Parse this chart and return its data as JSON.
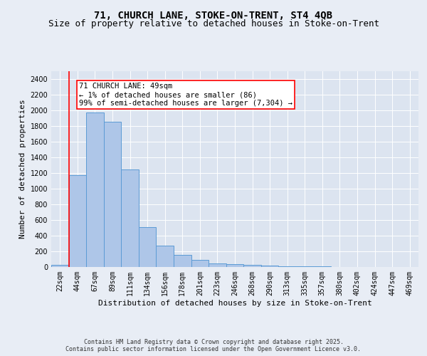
{
  "title_line1": "71, CHURCH LANE, STOKE-ON-TRENT, ST4 4QB",
  "title_line2": "Size of property relative to detached houses in Stoke-on-Trent",
  "xlabel": "Distribution of detached houses by size in Stoke-on-Trent",
  "ylabel": "Number of detached properties",
  "categories": [
    "22sqm",
    "44sqm",
    "67sqm",
    "89sqm",
    "111sqm",
    "134sqm",
    "156sqm",
    "178sqm",
    "201sqm",
    "223sqm",
    "246sqm",
    "268sqm",
    "290sqm",
    "313sqm",
    "335sqm",
    "357sqm",
    "380sqm",
    "402sqm",
    "424sqm",
    "447sqm",
    "469sqm"
  ],
  "values": [
    25,
    1175,
    1975,
    1855,
    1245,
    510,
    270,
    155,
    90,
    50,
    35,
    30,
    20,
    10,
    5,
    5,
    3,
    2,
    2,
    1,
    1
  ],
  "bar_color": "#aec6e8",
  "bar_edge_color": "#5b9bd5",
  "vline_color": "red",
  "annotation_text": "71 CHURCH LANE: 49sqm\n← 1% of detached houses are smaller (86)\n99% of semi-detached houses are larger (7,304) →",
  "annotation_box_color": "white",
  "annotation_box_edge": "red",
  "ylim": [
    0,
    2500
  ],
  "yticks": [
    0,
    200,
    400,
    600,
    800,
    1000,
    1200,
    1400,
    1600,
    1800,
    2000,
    2200,
    2400
  ],
  "bg_color": "#e8edf5",
  "plot_bg_color": "#dce4f0",
  "grid_color": "white",
  "footer_text": "Contains HM Land Registry data © Crown copyright and database right 2025.\nContains public sector information licensed under the Open Government Licence v3.0.",
  "title_fontsize": 10,
  "subtitle_fontsize": 9,
  "tick_fontsize": 7,
  "label_fontsize": 8,
  "annotation_fontsize": 7.5,
  "footer_fontsize": 6
}
